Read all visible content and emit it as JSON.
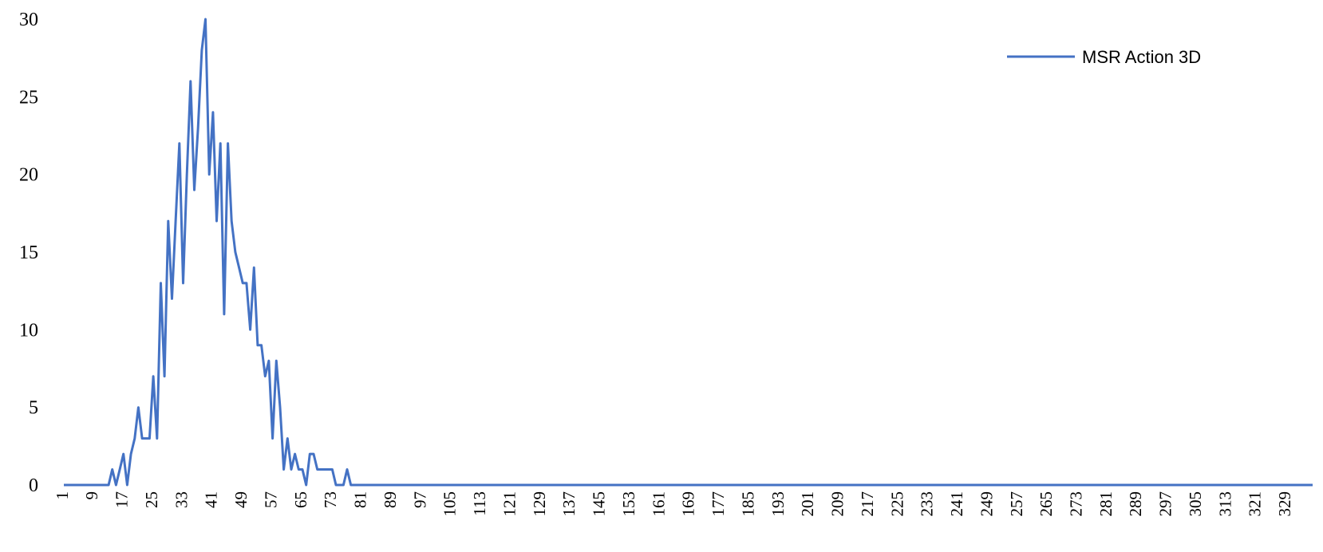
{
  "chart_data": {
    "type": "line",
    "title": "",
    "xlabel": "",
    "ylabel": "",
    "ylim": [
      0,
      30
    ],
    "xlim": [
      1,
      336
    ],
    "y_ticks": [
      "0",
      "5",
      "10",
      "15",
      "20",
      "25",
      "30"
    ],
    "x_ticks": [
      "1",
      "9",
      "17",
      "25",
      "33",
      "41",
      "49",
      "57",
      "65",
      "73",
      "81",
      "89",
      "97",
      "105",
      "113",
      "121",
      "129",
      "137",
      "145",
      "153",
      "161",
      "169",
      "177",
      "185",
      "193",
      "201",
      "209",
      "217",
      "225",
      "233",
      "241",
      "249",
      "257",
      "265",
      "273",
      "281",
      "289",
      "297",
      "305",
      "313",
      "321",
      "329"
    ],
    "legend_position": "top-right",
    "series": [
      {
        "name": "MSR Action 3D",
        "color": "#4472C4",
        "points": [
          [
            1,
            0
          ],
          [
            13,
            0
          ],
          [
            14,
            1
          ],
          [
            15,
            0
          ],
          [
            16,
            1
          ],
          [
            17,
            2
          ],
          [
            18,
            0
          ],
          [
            19,
            2
          ],
          [
            20,
            3
          ],
          [
            21,
            5
          ],
          [
            22,
            3
          ],
          [
            23,
            3
          ],
          [
            24,
            3
          ],
          [
            25,
            7
          ],
          [
            26,
            3
          ],
          [
            27,
            13
          ],
          [
            28,
            7
          ],
          [
            29,
            17
          ],
          [
            30,
            12
          ],
          [
            31,
            17
          ],
          [
            32,
            22
          ],
          [
            33,
            13
          ],
          [
            34,
            20
          ],
          [
            35,
            26
          ],
          [
            36,
            19
          ],
          [
            37,
            23
          ],
          [
            38,
            28
          ],
          [
            39,
            30
          ],
          [
            40,
            20
          ],
          [
            41,
            24
          ],
          [
            42,
            17
          ],
          [
            43,
            22
          ],
          [
            44,
            11
          ],
          [
            45,
            22
          ],
          [
            46,
            17
          ],
          [
            47,
            15
          ],
          [
            48,
            14
          ],
          [
            49,
            13
          ],
          [
            50,
            13
          ],
          [
            51,
            10
          ],
          [
            52,
            14
          ],
          [
            53,
            9
          ],
          [
            54,
            9
          ],
          [
            55,
            7
          ],
          [
            56,
            8
          ],
          [
            57,
            3
          ],
          [
            58,
            8
          ],
          [
            59,
            5
          ],
          [
            60,
            1
          ],
          [
            61,
            3
          ],
          [
            62,
            1
          ],
          [
            63,
            2
          ],
          [
            64,
            1
          ],
          [
            65,
            1
          ],
          [
            66,
            0
          ],
          [
            67,
            2
          ],
          [
            68,
            2
          ],
          [
            69,
            1
          ],
          [
            70,
            1
          ],
          [
            71,
            1
          ],
          [
            72,
            1
          ],
          [
            73,
            1
          ],
          [
            74,
            0
          ],
          [
            75,
            0
          ],
          [
            76,
            0
          ],
          [
            77,
            1
          ],
          [
            78,
            0
          ],
          [
            336,
            0
          ]
        ]
      }
    ]
  }
}
